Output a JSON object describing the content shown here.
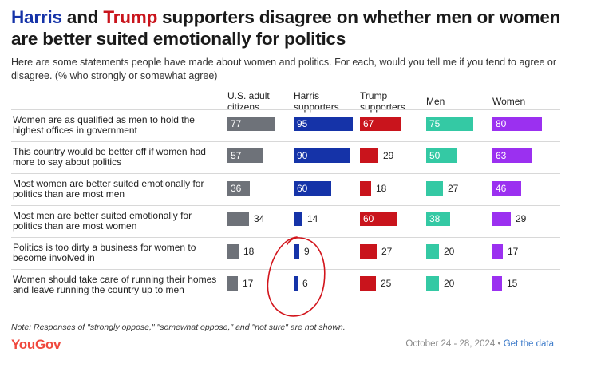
{
  "title": {
    "harris": "Harris",
    "and": " and ",
    "trump": "Trump",
    "rest": " supporters disagree on whether men or women are better suited emotionally for politics"
  },
  "subtitle": "Here are some statements people have made about women and politics. For each, would you tell me if you tend to agree or disagree. (% who strongly or somewhat agree)",
  "colors": {
    "us_adults": "#6e7279",
    "harris": "#1533a8",
    "trump": "#c9141c",
    "men": "#34c9a4",
    "women": "#9b30f0"
  },
  "chart_data": {
    "type": "bar",
    "title": "Harris and Trump supporters disagree on whether men or women are better suited emotionally for politics",
    "xlim": [
      0,
      100
    ],
    "categories": [
      "Women are as qualified as men to hold the highest offices in government",
      "This country would be better off if women had more to say about politics",
      "Most women are better suited emotionally for politics than are most men",
      "Most men are better suited emotionally for politics than are most women",
      "Politics is too dirty a business for women to become involved in",
      "Women should take care of running their homes and leave running the country up to men"
    ],
    "series": [
      {
        "name": "U.S. adult citizens",
        "key": "us_adults",
        "values": [
          77,
          57,
          36,
          34,
          18,
          17
        ]
      },
      {
        "name": "Harris supporters",
        "key": "harris",
        "values": [
          95,
          90,
          60,
          14,
          9,
          6
        ]
      },
      {
        "name": "Trump supporters",
        "key": "trump",
        "values": [
          67,
          29,
          18,
          60,
          27,
          25
        ]
      },
      {
        "name": "Men",
        "key": "men",
        "values": [
          75,
          50,
          27,
          38,
          20,
          20
        ]
      },
      {
        "name": "Women",
        "key": "women",
        "values": [
          80,
          63,
          46,
          29,
          17,
          15
        ]
      }
    ]
  },
  "note": "Note: Responses of \"strongly oppose,\" \"somewhat oppose,\" and \"not sure\" are not shown.",
  "logo": "YouGov",
  "footer": {
    "date": "October 24 - 28, 2024",
    "separator": " • ",
    "link": "Get the data"
  }
}
